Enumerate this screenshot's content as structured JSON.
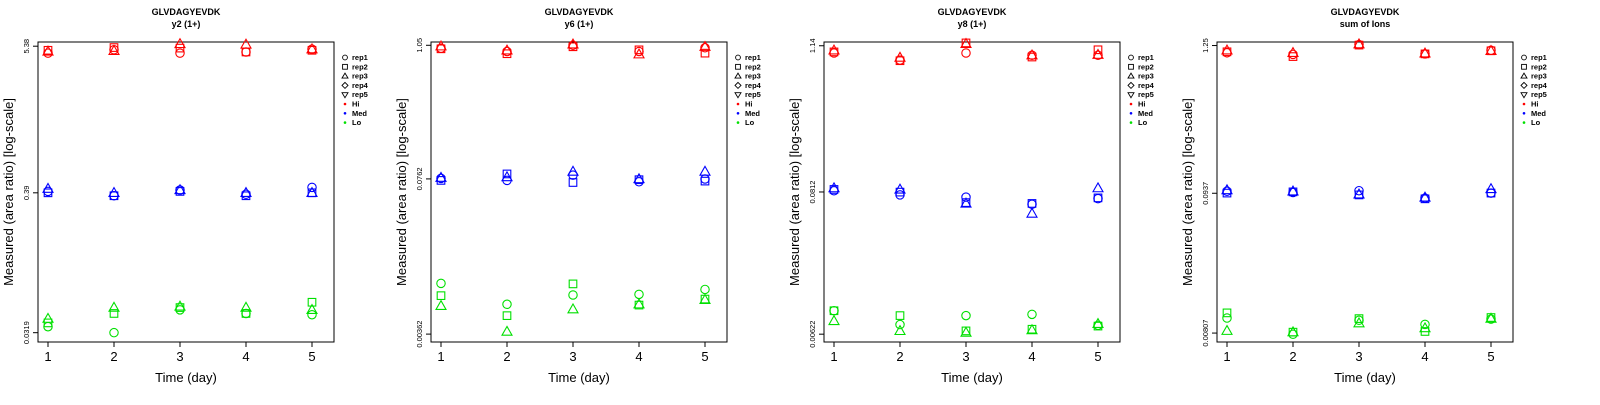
{
  "colors": {
    "Hi": "#ff0000",
    "Med": "#0000ff",
    "Lo": "#00e000"
  },
  "legend": {
    "reps": [
      {
        "label": "rep1",
        "shape": "circle"
      },
      {
        "label": "rep2",
        "shape": "square"
      },
      {
        "label": "rep3",
        "shape": "triangle-up"
      },
      {
        "label": "rep4",
        "shape": "diamond"
      },
      {
        "label": "rep5",
        "shape": "triangle-down"
      }
    ],
    "levels": [
      "Hi",
      "Med",
      "Lo"
    ]
  },
  "chart_data": [
    {
      "type": "scatter",
      "title": "GLVDAGYEVDK",
      "subtitle": "y2 (1+)",
      "xlabel": "Time (day)",
      "ylabel": "Measured (area ratio) [log-scale]",
      "x_ticks": [
        "1",
        "2",
        "3",
        "4",
        "5"
      ],
      "y_ticks": [
        {
          "value": 0.0319,
          "label": "0.0319"
        },
        {
          "value": 0.39,
          "label": "0.39"
        },
        {
          "value": 5.38,
          "label": "5.38"
        }
      ],
      "ylim": [
        0.027,
        5.8
      ],
      "series": [
        {
          "level": "Hi",
          "rep": "rep1",
          "values": [
            4.75,
            5.05,
            4.75,
            4.85,
            5.1
          ]
        },
        {
          "level": "Hi",
          "rep": "rep2",
          "values": [
            5.0,
            5.25,
            5.2,
            4.85,
            5.0
          ]
        },
        {
          "level": "Hi",
          "rep": "rep3",
          "values": [
            4.9,
            4.95,
            5.6,
            5.55,
            5.1
          ]
        },
        {
          "level": "Med",
          "rep": "rep1",
          "values": [
            0.4,
            0.37,
            0.41,
            0.38,
            0.43
          ]
        },
        {
          "level": "Med",
          "rep": "rep2",
          "values": [
            0.39,
            0.37,
            0.4,
            0.37,
            0.39
          ]
        },
        {
          "level": "Med",
          "rep": "rep3",
          "values": [
            0.42,
            0.39,
            0.41,
            0.39,
            0.39
          ]
        },
        {
          "level": "Lo",
          "rep": "rep1",
          "values": [
            0.0355,
            0.0319,
            0.048,
            0.045,
            0.044
          ]
        },
        {
          "level": "Lo",
          "rep": "rep2",
          "values": [
            0.038,
            0.045,
            0.05,
            0.045,
            0.055
          ]
        },
        {
          "level": "Lo",
          "rep": "rep3",
          "values": [
            0.041,
            0.05,
            0.051,
            0.05,
            0.048
          ]
        }
      ]
    },
    {
      "type": "scatter",
      "title": "GLVDAGYEVDK",
      "subtitle": "y6 (1+)",
      "xlabel": "Time (day)",
      "ylabel": "Measured (area ratio) [log-scale]",
      "x_ticks": [
        "1",
        "2",
        "3",
        "4",
        "5"
      ],
      "y_ticks": [
        {
          "value": 0.00362,
          "label": "0.00362"
        },
        {
          "value": 0.0762,
          "label": "0.0762"
        },
        {
          "value": 1.05,
          "label": "1.05"
        }
      ],
      "ylim": [
        0.0031,
        1.12
      ],
      "series": [
        {
          "level": "Hi",
          "rep": "rep1",
          "values": [
            0.99,
            0.93,
            1.05,
            0.93,
            1.0
          ]
        },
        {
          "level": "Hi",
          "rep": "rep2",
          "values": [
            0.98,
            0.89,
            1.02,
            0.96,
            0.9
          ]
        },
        {
          "level": "Hi",
          "rep": "rep3",
          "values": [
            1.03,
            0.95,
            1.07,
            0.88,
            1.02
          ]
        },
        {
          "level": "Med",
          "rep": "rep1",
          "values": [
            0.077,
            0.074,
            0.082,
            0.072,
            0.076
          ]
        },
        {
          "level": "Med",
          "rep": "rep2",
          "values": [
            0.074,
            0.084,
            0.071,
            0.075,
            0.073
          ]
        },
        {
          "level": "Med",
          "rep": "rep3",
          "values": [
            0.078,
            0.079,
            0.088,
            0.076,
            0.088
          ]
        },
        {
          "level": "Lo",
          "rep": "rep1",
          "values": [
            0.0098,
            0.0065,
            0.0078,
            0.0079,
            0.0087
          ]
        },
        {
          "level": "Lo",
          "rep": "rep2",
          "values": [
            0.0077,
            0.0052,
            0.0097,
            0.0064,
            0.0072
          ]
        },
        {
          "level": "Lo",
          "rep": "rep3",
          "values": [
            0.0063,
            0.0038,
            0.0059,
            0.0065,
            0.0071
          ]
        }
      ]
    },
    {
      "type": "scatter",
      "title": "GLVDAGYEVDK",
      "subtitle": "y8 (1+)",
      "xlabel": "Time (day)",
      "ylabel": "Measured (area ratio) [log-scale]",
      "x_ticks": [
        "1",
        "2",
        "3",
        "4",
        "5"
      ],
      "y_ticks": [
        {
          "value": 0.00622,
          "label": "0.00622"
        },
        {
          "value": 0.0812,
          "label": "0.0812"
        },
        {
          "value": 1.14,
          "label": "1.14"
        }
      ],
      "ylim": [
        0.0054,
        1.22
      ],
      "series": [
        {
          "level": "Hi",
          "rep": "rep1",
          "values": [
            1.0,
            0.88,
            1.0,
            0.96,
            0.96
          ]
        },
        {
          "level": "Hi",
          "rep": "rep2",
          "values": [
            1.02,
            0.87,
            1.2,
            0.93,
            1.06
          ]
        },
        {
          "level": "Hi",
          "rep": "rep3",
          "values": [
            1.05,
            0.92,
            1.18,
            0.96,
            0.97
          ]
        },
        {
          "level": "Med",
          "rep": "rep1",
          "values": [
            0.083,
            0.077,
            0.074,
            0.065,
            0.072
          ]
        },
        {
          "level": "Med",
          "rep": "rep2",
          "values": [
            0.085,
            0.081,
            0.067,
            0.066,
            0.073
          ]
        },
        {
          "level": "Med",
          "rep": "rep3",
          "values": [
            0.087,
            0.085,
            0.066,
            0.055,
            0.087
          ]
        },
        {
          "level": "Lo",
          "rep": "rep1",
          "values": [
            0.0095,
            0.0074,
            0.0087,
            0.0089,
            0.0073
          ]
        },
        {
          "level": "Lo",
          "rep": "rep2",
          "values": [
            0.0095,
            0.0087,
            0.0066,
            0.0068,
            0.0072
          ]
        },
        {
          "level": "Lo",
          "rep": "rep3",
          "values": [
            0.0079,
            0.0066,
            0.0064,
            0.0067,
            0.0075
          ]
        }
      ]
    },
    {
      "type": "scatter",
      "title": "GLVDAGYEVDK",
      "subtitle": "sum of Ions",
      "xlabel": "Time (day)",
      "ylabel": "Measured (area ratio) [log-scale]",
      "x_ticks": [
        "1",
        "2",
        "3",
        "4",
        "5"
      ],
      "y_ticks": [
        {
          "value": 0.00807,
          "label": "0.00807"
        },
        {
          "value": 0.0937,
          "label": "0.0937"
        },
        {
          "value": 1.25,
          "label": "1.25"
        }
      ],
      "ylim": [
        0.0069,
        1.33
      ],
      "series": [
        {
          "level": "Hi",
          "rep": "rep1",
          "values": [
            1.1,
            1.07,
            1.27,
            1.08,
            1.15
          ]
        },
        {
          "level": "Hi",
          "rep": "rep2",
          "values": [
            1.12,
            1.03,
            1.26,
            1.08,
            1.14
          ]
        },
        {
          "level": "Hi",
          "rep": "rep3",
          "values": [
            1.15,
            1.1,
            1.28,
            1.09,
            1.14
          ]
        },
        {
          "level": "Med",
          "rep": "rep1",
          "values": [
            0.097,
            0.095,
            0.098,
            0.086,
            0.094
          ]
        },
        {
          "level": "Med",
          "rep": "rep2",
          "values": [
            0.094,
            0.096,
            0.091,
            0.085,
            0.094
          ]
        },
        {
          "level": "Med",
          "rep": "rep3",
          "values": [
            0.099,
            0.097,
            0.092,
            0.087,
            0.101
          ]
        },
        {
          "level": "Lo",
          "rep": "rep1",
          "values": [
            0.0105,
            0.0079,
            0.0101,
            0.0094,
            0.0103
          ]
        },
        {
          "level": "Lo",
          "rep": "rep2",
          "values": [
            0.0115,
            0.0082,
            0.0104,
            0.0083,
            0.0106
          ]
        },
        {
          "level": "Lo",
          "rep": "rep3",
          "values": [
            0.0084,
            0.0082,
            0.0096,
            0.0088,
            0.0104
          ]
        }
      ]
    }
  ]
}
